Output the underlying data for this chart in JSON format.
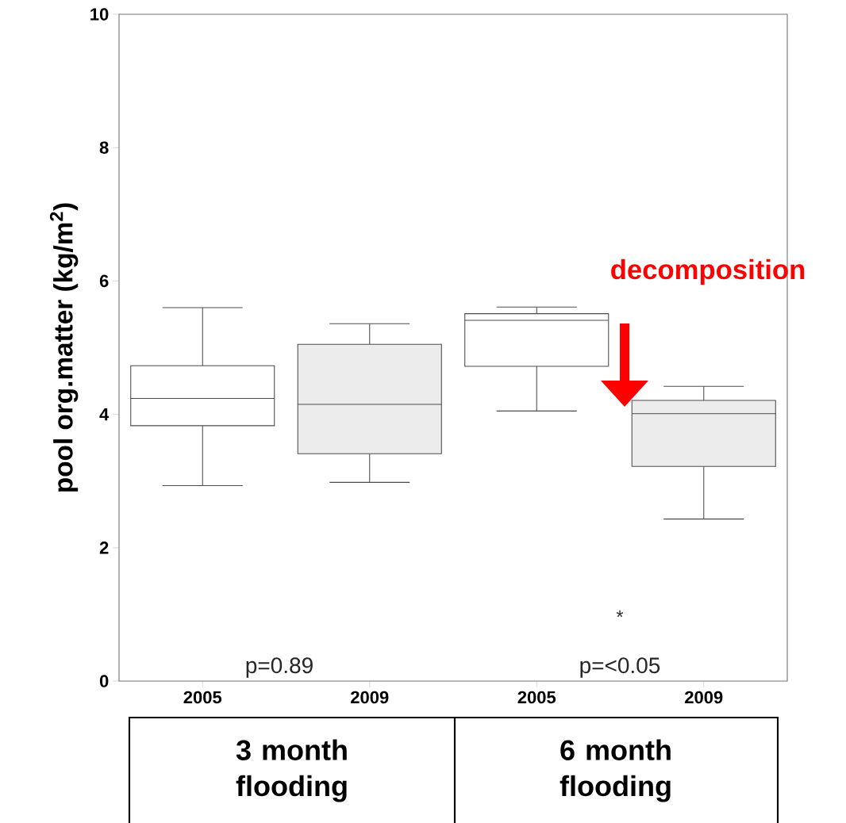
{
  "chart_data": {
    "type": "box",
    "ylabel": "pool org.matter (kg/m$^{2}$)",
    "categories": [
      "2005",
      "2009",
      "2005",
      "2009"
    ],
    "boxes": [
      {
        "low": 2.93,
        "q1": 3.83,
        "median": 4.24,
        "q3": 4.73,
        "high": 5.6
      },
      {
        "low": 2.98,
        "q1": 3.41,
        "median": 4.15,
        "q3": 5.05,
        "high": 5.36
      },
      {
        "low": 4.05,
        "q1": 4.72,
        "median": 5.41,
        "q3": 5.51,
        "high": 5.61
      },
      {
        "low": 2.43,
        "q1": 3.22,
        "median": 4.01,
        "q3": 4.21,
        "high": 4.42
      }
    ],
    "colors": [
      "#ffffff",
      "#ececec",
      "#ffffff",
      "#ececec"
    ],
    "ylim": [
      0,
      10
    ],
    "yticks": [
      0,
      2,
      4,
      6,
      8,
      10
    ],
    "annotations": [
      "p=0.89",
      "p=<0.05",
      "*",
      "decomposition",
      "3 month flooding",
      "6 month flooding"
    ]
  }
}
